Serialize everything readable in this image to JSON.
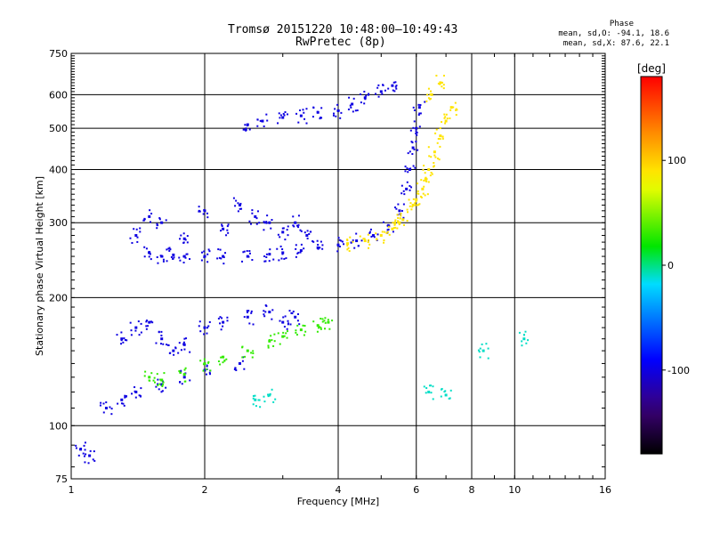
{
  "header": {
    "title_line1": "Tromsø 20151220 10:48:00–10:49:43",
    "title_line2": "RwPretec (8p)",
    "stats_title": "Phase",
    "stats_line1": "mean, sd,O: -94.1, 18.6",
    "stats_line2": "mean, sd,X:  87.6, 22.1"
  },
  "chart_data": {
    "type": "scatter",
    "xlabel": "Frequency [MHz]",
    "ylabel": "Stationary phase Virtual Height [km]",
    "xscale": "log",
    "yscale": "log",
    "xlim": [
      1,
      16
    ],
    "ylim": [
      75,
      750
    ],
    "x_ticks": [
      1,
      2,
      4,
      6,
      8,
      10,
      16
    ],
    "y_ticks": [
      75,
      100,
      200,
      300,
      400,
      500,
      600,
      750
    ],
    "x_gridlines": [
      2,
      4,
      6,
      8,
      10
    ],
    "y_gridlines": [
      100,
      200,
      300,
      400,
      500,
      600
    ],
    "colorbar": {
      "label": "[deg]",
      "range": [
        -180,
        180
      ],
      "ticks": [
        100,
        0,
        -100
      ]
    },
    "series": [
      {
        "phase_deg": -100,
        "points": [
          [
            1.5,
            255
          ],
          [
            1.6,
            250
          ],
          [
            1.7,
            252
          ],
          [
            1.8,
            250
          ],
          [
            2.0,
            250
          ],
          [
            2.2,
            250
          ],
          [
            2.5,
            250
          ],
          [
            2.8,
            253
          ],
          [
            3.0,
            255
          ],
          [
            3.3,
            258
          ],
          [
            3.6,
            262
          ],
          [
            4.0,
            266
          ],
          [
            4.4,
            272
          ],
          [
            4.8,
            280
          ],
          [
            5.2,
            295
          ],
          [
            5.5,
            320
          ],
          [
            5.7,
            360
          ],
          [
            5.8,
            400
          ],
          [
            5.9,
            450
          ],
          [
            6.0,
            500
          ],
          [
            6.1,
            560
          ],
          [
            1.4,
            280
          ],
          [
            1.5,
            310
          ],
          [
            1.6,
            300
          ],
          [
            1.8,
            275
          ],
          [
            2.0,
            320
          ],
          [
            2.2,
            290
          ],
          [
            2.4,
            330
          ],
          [
            2.6,
            310
          ],
          [
            2.8,
            300
          ],
          [
            3.0,
            285
          ],
          [
            3.2,
            300
          ],
          [
            3.4,
            280
          ],
          [
            2.5,
            510
          ],
          [
            2.7,
            520
          ],
          [
            3.0,
            530
          ],
          [
            3.3,
            535
          ],
          [
            3.6,
            545
          ],
          [
            4.0,
            550
          ],
          [
            4.3,
            570
          ],
          [
            4.6,
            590
          ],
          [
            5.0,
            610
          ],
          [
            5.3,
            630
          ],
          [
            1.3,
            160
          ],
          [
            1.4,
            170
          ],
          [
            1.5,
            175
          ],
          [
            1.6,
            160
          ],
          [
            1.7,
            150
          ],
          [
            1.8,
            155
          ],
          [
            2.0,
            170
          ],
          [
            2.2,
            175
          ],
          [
            2.5,
            180
          ],
          [
            2.8,
            185
          ],
          [
            3.0,
            175
          ],
          [
            3.2,
            180
          ],
          [
            1.05,
            88
          ],
          [
            1.1,
            85
          ],
          [
            1.2,
            110
          ],
          [
            1.3,
            115
          ],
          [
            1.4,
            120
          ],
          [
            1.6,
            125
          ],
          [
            1.8,
            130
          ],
          [
            2.0,
            135
          ],
          [
            2.4,
            140
          ]
        ]
      },
      {
        "phase_deg": 90,
        "points": [
          [
            4.2,
            268
          ],
          [
            4.6,
            272
          ],
          [
            5.0,
            280
          ],
          [
            5.3,
            290
          ],
          [
            5.6,
            305
          ],
          [
            5.9,
            330
          ],
          [
            6.2,
            360
          ],
          [
            6.4,
            400
          ],
          [
            6.6,
            440
          ],
          [
            6.8,
            480
          ],
          [
            7.0,
            520
          ],
          [
            7.2,
            560
          ],
          [
            6.5,
            600
          ],
          [
            6.8,
            640
          ],
          [
            5.5,
            300
          ],
          [
            6.0,
            340
          ],
          [
            6.3,
            380
          ]
        ]
      },
      {
        "phase_deg": 30,
        "points": [
          [
            1.5,
            130
          ],
          [
            1.6,
            128
          ],
          [
            1.8,
            132
          ],
          [
            2.0,
            140
          ],
          [
            2.2,
            145
          ],
          [
            2.5,
            150
          ],
          [
            2.8,
            158
          ],
          [
            3.0,
            162
          ],
          [
            3.3,
            168
          ],
          [
            3.6,
            172
          ],
          [
            3.8,
            175
          ]
        ]
      },
      {
        "phase_deg": -10,
        "points": [
          [
            2.6,
            115
          ],
          [
            2.8,
            118
          ],
          [
            6.4,
            120
          ],
          [
            7.0,
            118
          ],
          [
            8.5,
            150
          ],
          [
            10.5,
            160
          ]
        ]
      }
    ]
  },
  "palette": {
    "grid": "#000000",
    "axis": "#000000"
  }
}
